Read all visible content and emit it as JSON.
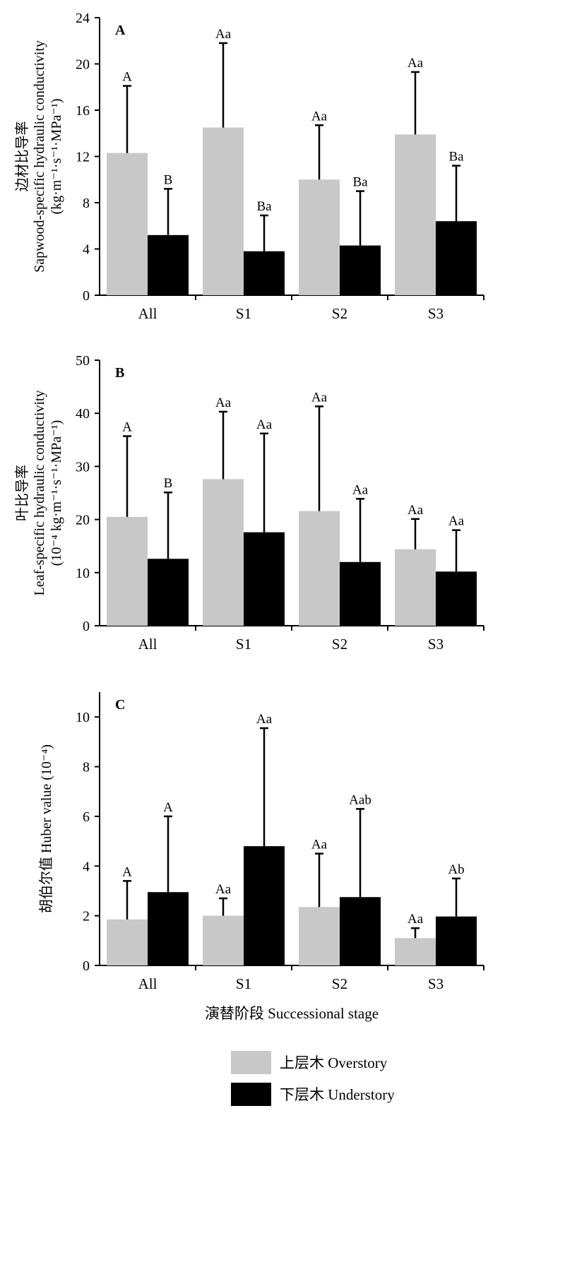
{
  "colors": {
    "overstory": "#c8c8c8",
    "understory": "#000000",
    "axis": "#000000"
  },
  "legend": [
    {
      "label": "上层木 Overstory",
      "color": "#c8c8c8"
    },
    {
      "label": "下层木 Understory",
      "color": "#000000"
    }
  ],
  "xlabel": "演替阶段 Successional stage",
  "chart_data": [
    {
      "type": "bar",
      "panel": "A",
      "categories": [
        "All",
        "S1",
        "S2",
        "S3"
      ],
      "ylim": [
        0,
        24
      ],
      "yticks": [
        0,
        4,
        8,
        12,
        16,
        20,
        24
      ],
      "ylabel_cn": "边材比导率",
      "ylabel_en": "Sapwood-specific hydraulic conductivity",
      "ylabel_unit": "(kg·m⁻¹·s⁻¹·MPa⁻¹)",
      "series": [
        {
          "name": "上层木 Overstory",
          "values": [
            12.3,
            14.5,
            10.0,
            13.9
          ],
          "errors": [
            5.8,
            7.3,
            4.7,
            5.4
          ],
          "letters": [
            "A",
            "Aa",
            "Aa",
            "Aa"
          ]
        },
        {
          "name": "下层木 Understory",
          "values": [
            5.2,
            3.8,
            4.3,
            6.4
          ],
          "errors": [
            4.0,
            3.1,
            4.7,
            4.8
          ],
          "letters": [
            "B",
            "Ba",
            "Ba",
            "Ba"
          ]
        }
      ]
    },
    {
      "type": "bar",
      "panel": "B",
      "categories": [
        "All",
        "S1",
        "S2",
        "S3"
      ],
      "ylim": [
        0,
        50
      ],
      "yticks": [
        0,
        10,
        20,
        30,
        40,
        50
      ],
      "ylabel_cn": "叶比导率",
      "ylabel_en": "Leaf-specific hydraulic conductivity",
      "ylabel_unit": "(10⁻⁴ kg·m⁻¹·s⁻¹·MPa⁻¹)",
      "series": [
        {
          "name": "上层木 Overstory",
          "values": [
            20.5,
            27.6,
            21.6,
            14.4
          ],
          "errors": [
            15.2,
            12.7,
            19.7,
            5.7
          ],
          "letters": [
            "A",
            "Aa",
            "Aa",
            "Aa"
          ]
        },
        {
          "name": "下层木 Understory",
          "values": [
            12.6,
            17.6,
            12.0,
            10.2
          ],
          "errors": [
            12.5,
            18.6,
            11.9,
            7.8
          ],
          "letters": [
            "B",
            "Aa",
            "Aa",
            "Aa"
          ]
        }
      ]
    },
    {
      "type": "bar",
      "panel": "C",
      "categories": [
        "All",
        "S1",
        "S2",
        "S3"
      ],
      "ylim": [
        0,
        11
      ],
      "yticks": [
        0,
        2,
        4,
        6,
        8,
        10
      ],
      "ylabel_cn": "胡伯尔值",
      "ylabel_en": "Huber value (10⁻⁴)",
      "ylabel_unit": "",
      "series": [
        {
          "name": "上层木 Overstory",
          "values": [
            1.85,
            2.0,
            2.35,
            1.1
          ],
          "errors": [
            1.55,
            0.7,
            2.15,
            0.4
          ],
          "letters": [
            "A",
            "Aa",
            "Aa",
            "Aa"
          ]
        },
        {
          "name": "下层木 Understory",
          "values": [
            2.95,
            4.8,
            2.75,
            1.97
          ],
          "errors": [
            3.05,
            4.75,
            3.55,
            1.53
          ],
          "letters": [
            "A",
            "Aa",
            "Aab",
            "Ab"
          ]
        }
      ]
    }
  ]
}
